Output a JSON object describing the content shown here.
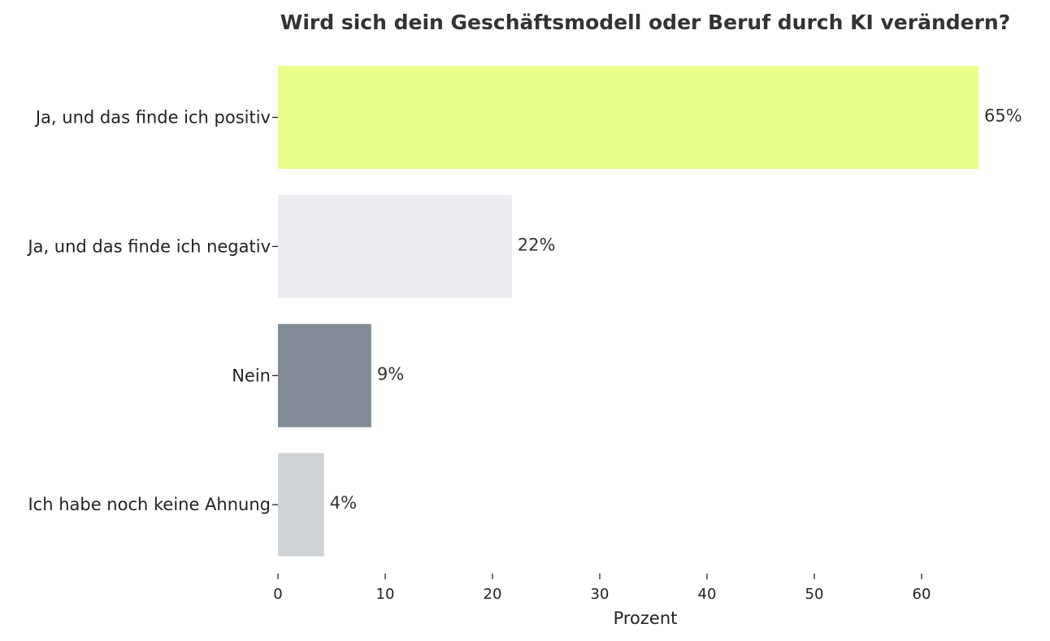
{
  "chart_data": {
    "type": "bar",
    "orientation": "horizontal",
    "title": "Wird sich dein Geschäftsmodell oder Beruf durch KI verändern?",
    "xlabel": "Prozent",
    "ylabel": "",
    "categories": [
      "Ja, und das finde ich positiv",
      "Ja, und das finde ich negativ",
      "Nein",
      "Ich habe noch keine Ahnung"
    ],
    "values": [
      65.3,
      21.8,
      8.7,
      4.3
    ],
    "value_labels": [
      "65%",
      "22%",
      "9%",
      "4%"
    ],
    "colors": [
      "#e8ff8a",
      "#ebecf0",
      "#808b96",
      "#d0d3d6"
    ],
    "xticks": [
      0,
      10,
      20,
      30,
      40,
      50,
      60
    ],
    "xlim": [
      0,
      70.5
    ],
    "grid": false,
    "legend": "none"
  }
}
